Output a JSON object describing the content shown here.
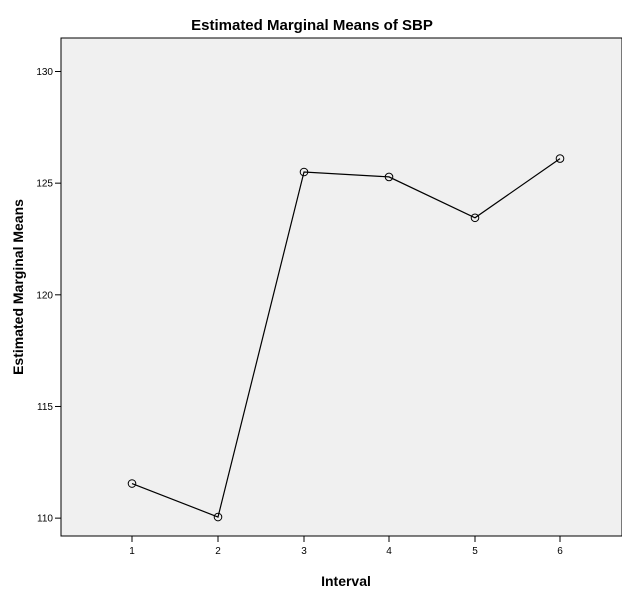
{
  "chart_data": {
    "type": "line",
    "title": "Estimated Marginal Means of SBP",
    "xlabel": "Interval",
    "ylabel": "Estimated Marginal Means",
    "categories": [
      "1",
      "2",
      "3",
      "4",
      "5",
      "6"
    ],
    "series": [
      {
        "values": [
          111.55,
          110.05,
          125.5,
          125.28,
          123.45,
          126.1
        ]
      }
    ],
    "ylim": [
      109.2,
      131.5
    ],
    "yticks": [
      110,
      115,
      120,
      125,
      130
    ],
    "grid": false,
    "legend": "none",
    "colors": {
      "plot_background": "#f0f0f0",
      "line": "#000000",
      "marker": "#000000"
    },
    "marker": "open-circle"
  }
}
